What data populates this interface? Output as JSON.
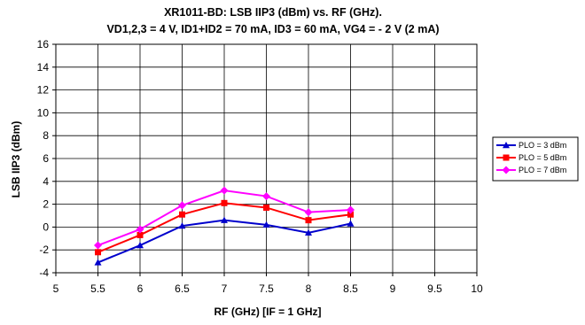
{
  "chart_data": {
    "type": "line",
    "title": "XR1011-BD: LSB IIP3 (dBm) vs. RF (GHz).",
    "subtitle": "VD1,2,3 = 4 V, ID1+ID2 = 70 mA, ID3 = 60 mA, VG4 = - 2 V (2 mA)",
    "xlabel": "RF (GHz) [IF = 1 GHz]",
    "ylabel": "LSB IIP3 (dBm)",
    "xlim": [
      5,
      10
    ],
    "ylim": [
      -4,
      16
    ],
    "x_ticks": [
      "5",
      "5.5",
      "6",
      "6.5",
      "7",
      "7.5",
      "8",
      "8.5",
      "9",
      "9.5",
      "10"
    ],
    "y_ticks": [
      "-4",
      "-2",
      "0",
      "2",
      "4",
      "6",
      "8",
      "10",
      "12",
      "14",
      "16"
    ],
    "grid": true,
    "legend_position": "right",
    "x": [
      5.5,
      6,
      6.5,
      7,
      7.5,
      8,
      8.5
    ],
    "series": [
      {
        "name": "PLO = 3 dBm",
        "color": "#0000cc",
        "marker": "triangle",
        "values": [
          -3.1,
          -1.6,
          0.1,
          0.6,
          0.2,
          -0.5,
          0.3
        ]
      },
      {
        "name": "PLO = 5 dBm",
        "color": "#ff0000",
        "marker": "square",
        "values": [
          -2.2,
          -0.7,
          1.1,
          2.1,
          1.7,
          0.6,
          1.1
        ]
      },
      {
        "name": "PLO = 7 dBm",
        "color": "#ff00ff",
        "marker": "diamond",
        "values": [
          -1.6,
          -0.2,
          1.9,
          3.2,
          2.7,
          1.3,
          1.5
        ]
      }
    ]
  }
}
